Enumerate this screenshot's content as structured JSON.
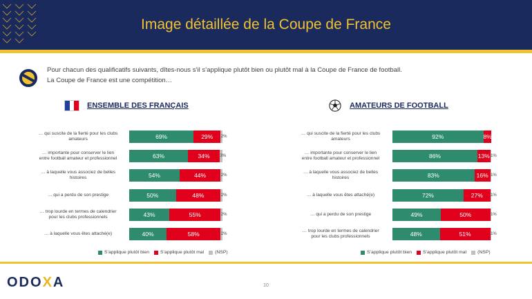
{
  "header": {
    "title": "Image détaillée de la Coupe de France"
  },
  "intro": {
    "line1": "Pour chacun des qualificatifs suivants, dîtes-nous s’il s’applique plutôt bien ou plutôt mal à la Coupe de France de football.",
    "line2": "La Coupe de France est une compétition…"
  },
  "colors": {
    "bien": "#2e8b6e",
    "mal": "#e0001b",
    "nsp": "#bfbfbf",
    "navy": "#1b2a5c",
    "gold": "#f2c230"
  },
  "legend": {
    "bien": "S’applique plutôt bien",
    "mal": "S’applique plutôt mal",
    "nsp": "(NSP)"
  },
  "chart_data": [
    {
      "type": "bar",
      "stacked": true,
      "orientation": "horizontal",
      "title": "ENSEMBLE DES FRANÇAIS",
      "categories": [
        [
          "… qui suscite de la fierté pour les clubs",
          "amateurs"
        ],
        [
          "… importante pour conserver le lien",
          "entre football amateur et professionnel"
        ],
        [
          "… à laquelle vous associez de belles",
          "histoires"
        ],
        [
          "… qui a perdu de son prestige"
        ],
        [
          "… trop lourde en termes de calendrier",
          "pour les clubs professionnels"
        ],
        [
          "… à laquelle vous êtes attaché(e)"
        ]
      ],
      "series": [
        {
          "name": "S’applique plutôt bien",
          "values": [
            69,
            63,
            54,
            50,
            43,
            40
          ]
        },
        {
          "name": "S’applique plutôt mal",
          "values": [
            29,
            34,
            44,
            48,
            55,
            58
          ]
        },
        {
          "name": "(NSP)",
          "values": [
            2,
            3,
            2,
            2,
            2,
            2
          ]
        }
      ],
      "unit": "%"
    },
    {
      "type": "bar",
      "stacked": true,
      "orientation": "horizontal",
      "title": "AMATEURS DE FOOTBALL",
      "categories": [
        [
          "… qui suscite de la fierté pour les clubs",
          "amateurs"
        ],
        [
          "… importante pour conserver le lien",
          "entre football amateur et professionnel"
        ],
        [
          "… à laquelle vous associez de belles",
          "histoires"
        ],
        [
          "… à laquelle vous êtes attaché(e)"
        ],
        [
          "… qui a perdu de son prestige"
        ],
        [
          "… trop lourde en termes de calendrier",
          "pour les clubs professionnels"
        ]
      ],
      "series": [
        {
          "name": "S’applique plutôt bien",
          "values": [
            92,
            86,
            83,
            72,
            49,
            48
          ]
        },
        {
          "name": "S’applique plutôt mal",
          "values": [
            8,
            13,
            16,
            27,
            50,
            51
          ]
        },
        {
          "name": "(NSP)",
          "values": [
            0,
            1,
            1,
            1,
            1,
            1
          ]
        }
      ],
      "unit": "%"
    }
  ],
  "footer": {
    "logo_a": "ODO",
    "logo_x": "X",
    "logo_b": "A",
    "page": "10"
  }
}
